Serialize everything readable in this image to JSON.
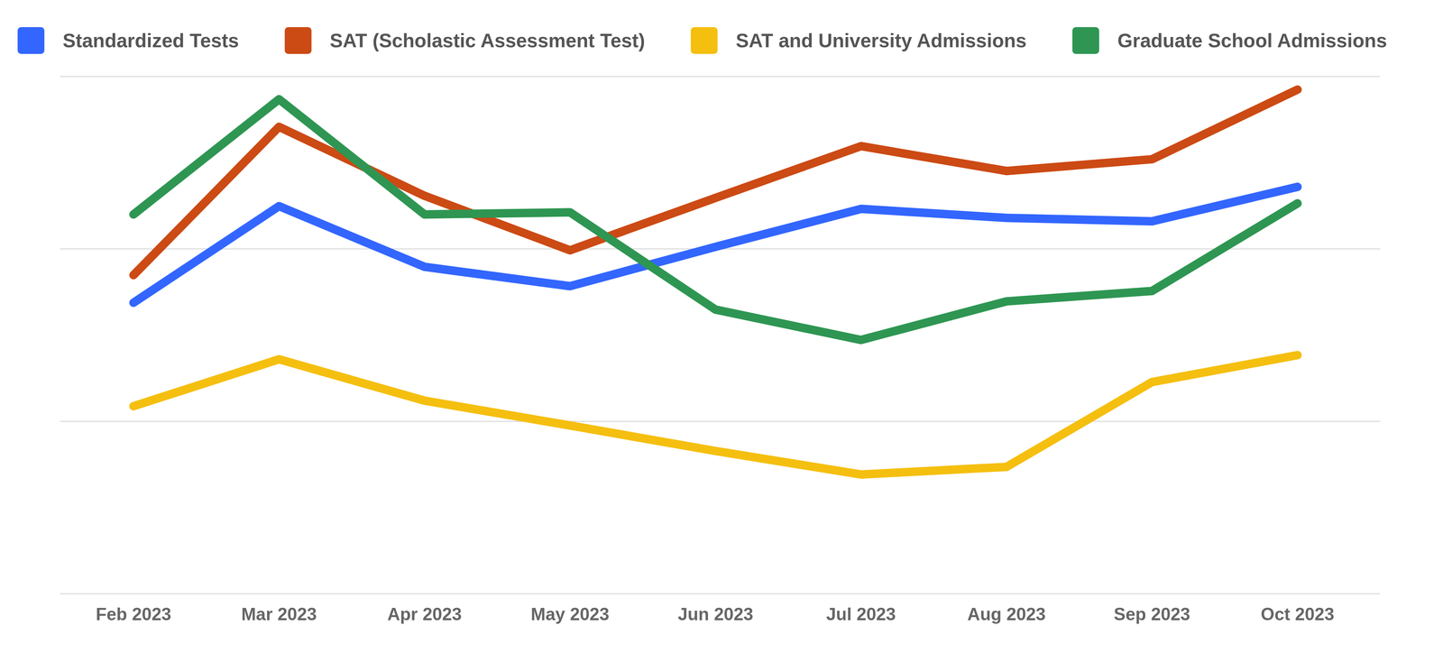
{
  "chart_data": {
    "type": "line",
    "categories": [
      "Feb 2023",
      "Mar 2023",
      "Apr 2023",
      "May 2023",
      "Jun 2023",
      "Jul 2023",
      "Aug 2023",
      "Sep 2023",
      "Oct 2023"
    ],
    "series": [
      {
        "name": "Standardized Tests",
        "color": "#3366FF",
        "values": [
          42.2,
          56.2,
          47.4,
          44.6,
          50.3,
          55.8,
          54.5,
          54.0,
          59.0
        ]
      },
      {
        "name": "SAT (Scholastic Assessment Test)",
        "color": "#CC4A14",
        "values": [
          46.2,
          67.7,
          57.7,
          49.8,
          57.4,
          64.9,
          61.3,
          63.0,
          73.1
        ]
      },
      {
        "name": "SAT and University Admissions",
        "color": "#F5BF10",
        "values": [
          27.2,
          34.0,
          28.0,
          24.4,
          20.7,
          17.3,
          18.4,
          30.7,
          34.6
        ]
      },
      {
        "name": "Graduate School Admissions",
        "color": "#2E9652",
        "values": [
          55.0,
          71.7,
          55.0,
          55.3,
          41.2,
          36.8,
          42.4,
          43.9,
          56.6
        ]
      }
    ],
    "ylim": [
      0,
      75
    ],
    "yticks": [
      0,
      25,
      50,
      75
    ],
    "grid": true,
    "legend": "top",
    "tick_labels": "x"
  }
}
